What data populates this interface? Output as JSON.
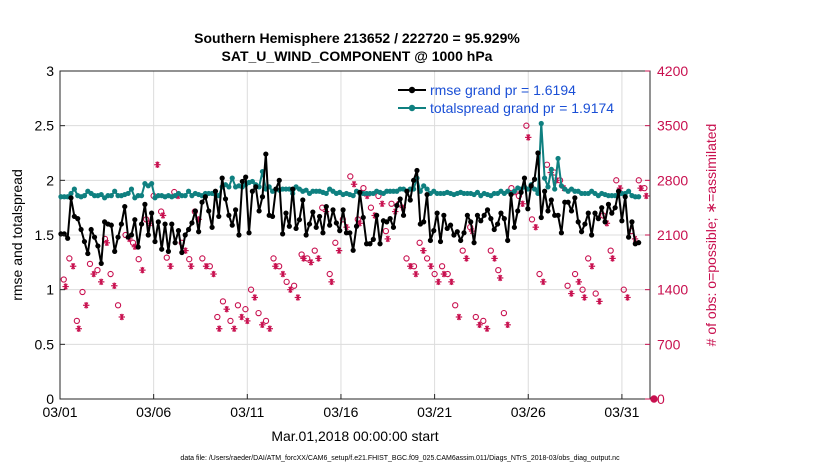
{
  "chart_data": {
    "type": "line",
    "title": "Southern Hemisphere 213652 / 222720 = 95.929%",
    "subtitle": "SAT_U_WIND_COMPONENT @ 1000 hPa",
    "xlabel": "Mar.01,2018 00:00:00 start",
    "ylabel_left": "rmse and totalspread",
    "ylabel_right": "# of obs: o=possible; ∗=assimilated",
    "footnote": "data file: /Users/raeder/DAI/ATM_forcXX/CAM6_setup/f.e21.FHIST_BGC.f09_025.CAM6assim.011/Diags_NTrS_2018-03/obs_diag_output.nc",
    "xlim": [
      0,
      31.5
    ],
    "ylim_left": [
      0,
      3
    ],
    "ylim_right": [
      0,
      4200
    ],
    "x_ticks": [
      0,
      5,
      10,
      15,
      20,
      25,
      30
    ],
    "x_tick_labels": [
      "03/01",
      "03/06",
      "03/11",
      "03/16",
      "03/21",
      "03/26",
      "03/31"
    ],
    "y_left_ticks": [
      "0",
      "0.5",
      "1",
      "1.5",
      "2",
      "2.5",
      "3"
    ],
    "y_left_tick_values": [
      0,
      0.5,
      1,
      1.5,
      2,
      2.5,
      3
    ],
    "y_right_ticks": [
      "0",
      "700",
      "1400",
      "2100",
      "2800",
      "3500",
      "4200"
    ],
    "y_right_tick_values": [
      0,
      700,
      1400,
      2100,
      2800,
      3500,
      4200
    ],
    "legend": [
      {
        "label": "rmse grand pr = 1.6194",
        "color": "#000000"
      },
      {
        "label": "totalspread grand pr = 1.9174",
        "color": "#0f8080"
      }
    ],
    "series": [
      {
        "name": "rmse",
        "axis": "left",
        "color": "#000000",
        "values": [
          1.51,
          1.51,
          1.47,
          1.84,
          1.67,
          1.65,
          1.55,
          1.44,
          1.33,
          1.55,
          1.48,
          1.4,
          1.24,
          1.62,
          1.6,
          1.59,
          1.35,
          1.48,
          1.6,
          1.76,
          1.48,
          1.5,
          1.64,
          1.39,
          1.6,
          1.78,
          1.5,
          1.7,
          1.44,
          1.62,
          1.37,
          1.6,
          1.35,
          1.6,
          1.43,
          1.54,
          1.34,
          1.5,
          1.55,
          1.61,
          1.72,
          1.53,
          1.8,
          1.85,
          1.72,
          1.57,
          1.9,
          1.67,
          2.02,
          1.83,
          1.68,
          1.59,
          1.73,
          1.5,
          1.99,
          2.03,
          1.52,
          1.9,
          1.94,
          1.72,
          1.85,
          2.24,
          1.68,
          1.67,
          1.92,
          2.0,
          1.51,
          1.7,
          1.58,
          1.92,
          1.56,
          1.64,
          1.82,
          1.5,
          1.6,
          1.71,
          1.57,
          1.67,
          1.52,
          1.76,
          1.59,
          1.73,
          1.61,
          1.54,
          1.73,
          1.52,
          1.52,
          1.36,
          1.58,
          1.89,
          1.66,
          1.42,
          1.42,
          1.46,
          1.68,
          1.42,
          1.63,
          1.62,
          1.65,
          1.57,
          1.77,
          1.83,
          1.68,
          1.9,
          1.82,
          2.0,
          2.09,
          1.6,
          1.62,
          1.87,
          1.45,
          1.54,
          1.7,
          1.44,
          1.68,
          1.56,
          1.59,
          1.5,
          1.53,
          1.45,
          1.52,
          1.68,
          1.62,
          1.43,
          1.68,
          1.63,
          1.68,
          1.73,
          1.65,
          1.55,
          1.6,
          1.7,
          1.65,
          1.45,
          1.87,
          1.57,
          1.72,
          1.89,
          2.02,
          1.74,
          1.95,
          2.01,
          2.25,
          1.66,
          1.9,
          1.72,
          1.82,
          1.68,
          1.68,
          1.52,
          1.8,
          1.8,
          1.72,
          1.84,
          1.62,
          1.53,
          1.6,
          1.7,
          1.5,
          1.7,
          1.65,
          1.75,
          1.62,
          1.78,
          1.7,
          1.75,
          1.9,
          1.63,
          1.85,
          1.48,
          1.62,
          1.42,
          1.43
        ]
      },
      {
        "name": "totalspread",
        "axis": "left",
        "color": "#0f8080",
        "values": [
          1.85,
          1.85,
          1.85,
          1.88,
          1.92,
          1.86,
          1.85,
          1.86,
          1.9,
          1.88,
          1.86,
          1.86,
          1.87,
          1.84,
          1.86,
          1.86,
          1.9,
          1.86,
          1.86,
          1.87,
          1.88,
          1.92,
          1.84,
          1.86,
          1.86,
          1.97,
          1.95,
          1.97,
          1.84,
          1.86,
          1.86,
          1.85,
          1.86,
          1.85,
          1.86,
          1.88,
          1.86,
          1.86,
          1.9,
          1.86,
          1.88,
          1.87,
          1.86,
          1.88,
          1.88,
          1.88,
          1.87,
          1.86,
          1.94,
          1.96,
          1.94,
          2.02,
          1.94,
          1.95,
          1.94,
          1.96,
          1.98,
          1.99,
          1.96,
          1.94,
          2.08,
          1.92,
          1.94,
          1.9,
          1.92,
          1.91,
          1.92,
          1.92,
          1.92,
          1.88,
          1.94,
          1.92,
          1.9,
          1.91,
          1.88,
          1.9,
          1.9,
          1.9,
          1.89,
          1.88,
          1.92,
          1.9,
          1.88,
          1.89,
          1.87,
          1.88,
          1.87,
          1.86,
          1.9,
          1.88,
          1.88,
          1.88,
          1.88,
          1.88,
          1.9,
          1.89,
          1.88,
          1.9,
          1.9,
          1.9,
          1.9,
          1.92,
          1.92,
          1.9,
          1.92,
          1.92,
          2.02,
          1.9,
          1.95,
          1.92,
          1.88,
          1.9,
          1.88,
          1.88,
          1.88,
          1.89,
          1.88,
          1.87,
          1.88,
          1.89,
          1.88,
          1.88,
          1.88,
          1.87,
          1.89,
          1.86,
          1.88,
          1.87,
          1.86,
          1.88,
          1.88,
          1.9,
          1.88,
          1.9,
          1.88,
          1.9,
          1.93,
          1.92,
          1.94,
          1.92,
          1.96,
          1.92,
          1.88,
          2.52,
          2.02,
          1.94,
          2.1,
          1.92,
          2.2,
          1.95,
          1.92,
          1.9,
          1.92,
          1.9,
          1.9,
          1.88,
          1.88,
          1.88,
          1.9,
          1.88,
          1.86,
          1.88,
          1.87,
          1.86,
          1.86,
          1.86,
          1.87,
          1.88,
          1.88,
          1.9,
          1.86,
          1.85,
          1.85
        ]
      }
    ],
    "obs_possible": {
      "axis": "right",
      "color": "#c8104f",
      "x": [
        0.2,
        0.5,
        0.9,
        1.2,
        1.6,
        2.0,
        2.4,
        2.7,
        3.1,
        3.5,
        3.9,
        4.2,
        4.6,
        5.0,
        5.4,
        5.7,
        6.1,
        6.5,
        6.9,
        7.2,
        7.6,
        8.0,
        8.4,
        8.7,
        9.1,
        9.5,
        9.9,
        10.2,
        10.6,
        11.0,
        11.4,
        11.7,
        12.1,
        12.5,
        12.9,
        13.2,
        13.6,
        14.0,
        14.4,
        14.7,
        15.1,
        15.5,
        15.9,
        16.2,
        16.6,
        17.0,
        17.4,
        17.7,
        18.1,
        18.5,
        18.9,
        19.2,
        19.6,
        20.0,
        20.4,
        20.7,
        21.1,
        21.5,
        21.9,
        22.2,
        22.6,
        23.0,
        23.4,
        23.7,
        24.1,
        24.5,
        24.9,
        25.2,
        25.6,
        26.0,
        26.4,
        26.7,
        27.1,
        27.5,
        27.9,
        28.2,
        28.6,
        29.0,
        29.4,
        29.7,
        30.1,
        30.5,
        30.9,
        31.2
      ],
      "values": [
        1530,
        1800,
        1000,
        1370,
        1730,
        1650,
        2050,
        1600,
        1200,
        2100,
        2000,
        1790,
        2300,
        2600,
        2400,
        1810,
        2650,
        2000,
        1790,
        2400,
        1800,
        1700,
        1050,
        1250,
        1000,
        1200,
        1150,
        1400,
        1100,
        1000,
        1800,
        1700,
        1500,
        1450,
        1850,
        1800,
        1900,
        2450,
        1600,
        2000,
        2300,
        2850,
        2300,
        2700,
        2450,
        2600,
        2150,
        2500,
        2500,
        1800,
        1700,
        2000,
        1800,
        1600,
        1700,
        1600,
        1200,
        1900,
        2200,
        1050,
        1000,
        1900,
        1650,
        1100,
        2700,
        2600,
        3500,
        2300,
        1600,
        3000,
        2900,
        2800,
        1450,
        1600,
        1400,
        1800,
        1350,
        2350,
        1900,
        2800,
        1400,
        2150,
        2800,
        2700
      ]
    },
    "obs_assimilated": {
      "axis": "right",
      "color": "#c8104f",
      "x": [
        0.3,
        0.7,
        1.0,
        1.4,
        1.8,
        2.2,
        2.5,
        2.9,
        3.3,
        3.7,
        4.0,
        4.4,
        4.8,
        5.2,
        5.5,
        5.9,
        6.3,
        6.7,
        7.0,
        7.4,
        7.8,
        8.2,
        8.5,
        8.9,
        9.3,
        9.7,
        10.0,
        10.4,
        10.8,
        11.2,
        11.5,
        11.9,
        12.3,
        12.7,
        13.0,
        13.4,
        13.8,
        14.2,
        14.5,
        14.9,
        15.3,
        15.7,
        16.0,
        16.4,
        16.8,
        17.2,
        17.5,
        17.9,
        18.3,
        18.7,
        19.0,
        19.4,
        19.8,
        20.2,
        20.5,
        20.9,
        21.3,
        21.7,
        22.0,
        22.4,
        22.8,
        23.2,
        23.5,
        23.9,
        24.3,
        24.7,
        25.0,
        25.4,
        25.8,
        26.2,
        26.5,
        26.9,
        27.3,
        27.7,
        28.0,
        28.4,
        28.8,
        29.2,
        29.5,
        29.9,
        30.3,
        30.7,
        31.0,
        31.3
      ],
      "values": [
        1440,
        1700,
        900,
        1200,
        1600,
        1500,
        2000,
        1450,
        1050,
        2050,
        1950,
        1650,
        2250,
        3000,
        2350,
        1700,
        2600,
        1900,
        1700,
        2300,
        1700,
        1600,
        900,
        1150,
        900,
        1050,
        1000,
        1300,
        950,
        900,
        1700,
        1600,
        1400,
        1300,
        1800,
        1750,
        1800,
        2400,
        1500,
        1900,
        2200,
        2750,
        2250,
        2600,
        2350,
        2500,
        2050,
        2400,
        2450,
        1700,
        1600,
        1900,
        1700,
        1500,
        1600,
        1500,
        1050,
        1800,
        2150,
        950,
        900,
        1800,
        1550,
        950,
        2650,
        2500,
        3350,
        2200,
        1500,
        2900,
        2800,
        2700,
        1350,
        1500,
        1300,
        1700,
        1250,
        2250,
        1800,
        2700,
        1300,
        2050,
        2700,
        2600
      ]
    }
  }
}
